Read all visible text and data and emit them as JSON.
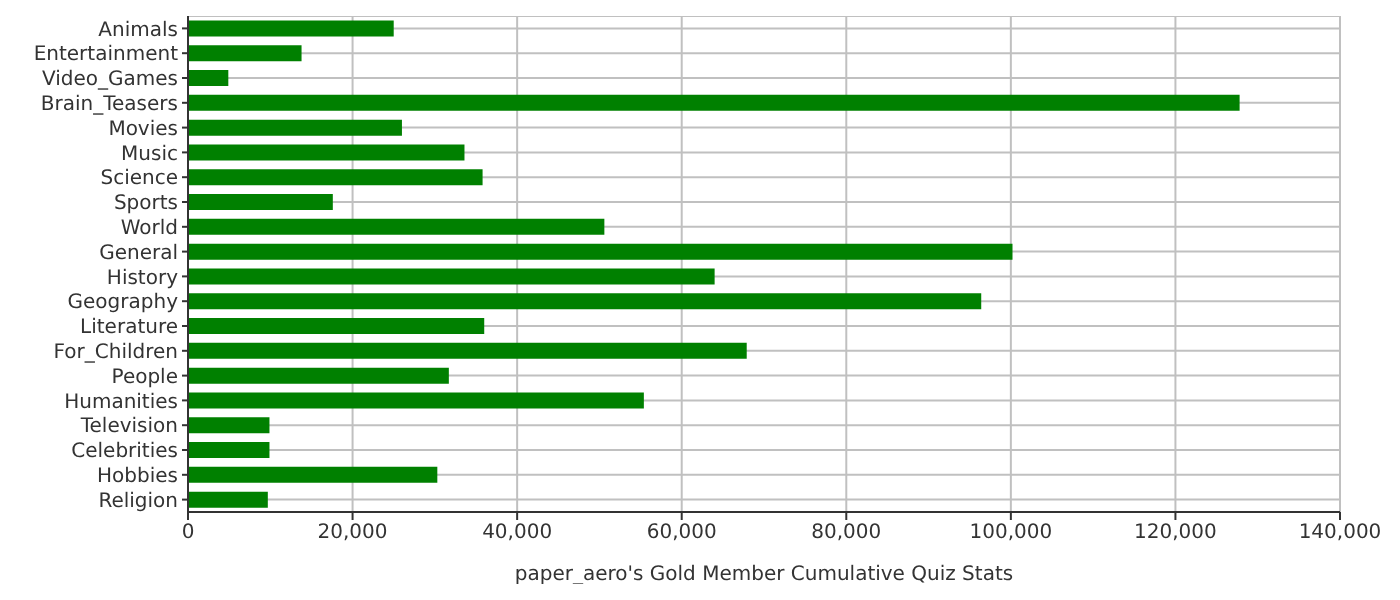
{
  "chart_data": {
    "type": "bar",
    "orientation": "horizontal",
    "xlabel": "paper_aero's Gold Member Cumulative Quiz Stats",
    "categories": [
      "Animals",
      "Entertainment",
      "Video_Games",
      "Brain_Teasers",
      "Movies",
      "Music",
      "Science",
      "Sports",
      "World",
      "General",
      "History",
      "Geography",
      "Literature",
      "For_Children",
      "People",
      "Humanities",
      "Television",
      "Celebrities",
      "Hobbies",
      "Religion"
    ],
    "values": [
      25000,
      13800,
      4900,
      127800,
      26000,
      33600,
      35800,
      17600,
      50600,
      100200,
      64000,
      96400,
      36000,
      67900,
      31700,
      55400,
      9900,
      9900,
      30300,
      9700
    ],
    "color": "#008000",
    "xlim": [
      0,
      140000
    ],
    "xticks": [
      0,
      {
        "value": 20000,
        "label": "20,000"
      },
      {
        "value": 40000,
        "label": "40,000"
      },
      {
        "value": 60000,
        "label": "60,000"
      },
      {
        "value": 80000,
        "label": "80,000"
      },
      {
        "value": 100000,
        "label": "100,000"
      },
      {
        "value": 120000,
        "label": "120,000"
      },
      {
        "value": 140000,
        "label": "140,000"
      }
    ],
    "grid": true
  }
}
